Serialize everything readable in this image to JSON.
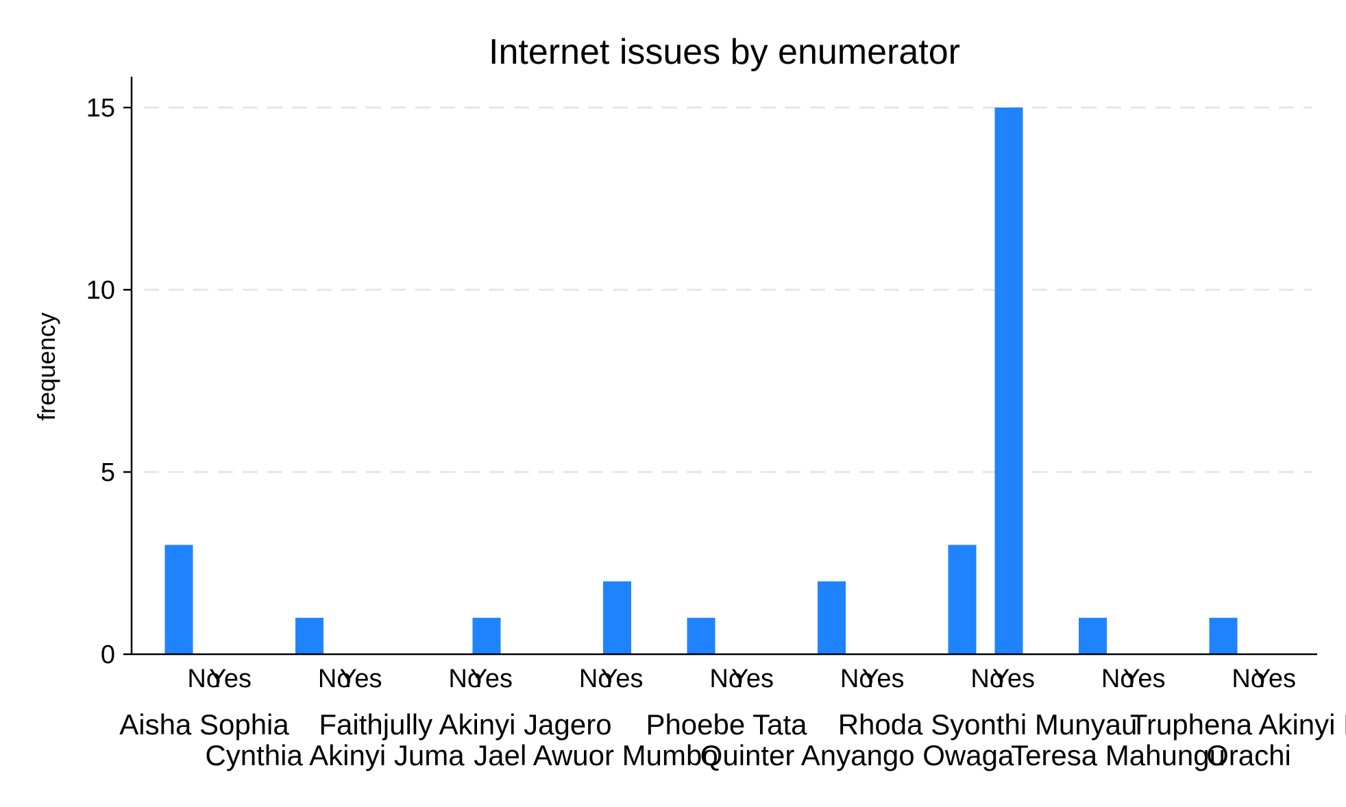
{
  "chart_data": {
    "type": "bar",
    "title": "Internet issues by enumerator",
    "ylabel": "frequency",
    "xlabel": "",
    "ylim": [
      0,
      15.8
    ],
    "yticks": [
      0,
      5,
      10,
      15
    ],
    "grid": true,
    "bar_color": "#1f83fe",
    "sub_categories": [
      "No",
      "Yes"
    ],
    "enumerators": [
      "Aisha Sophia",
      "Cynthia Akinyi Juma",
      "Faithjully Akinyi Jagero",
      "Jael Awuor Mumbo",
      "Phoebe Tata",
      "Quinter Anyango Owaga",
      "Rhoda Syonthi Munyau",
      "Teresa Mahungu",
      "Truphena Akinyi Orachi"
    ],
    "top_labels": [
      "Aisha Sophia",
      "Faithjully Akinyi Jagero",
      "Phoebe Tata",
      "Rhoda Syonthi Munyau",
      "Truphena Akinyi M"
    ],
    "bottom_labels": [
      "Cynthia Akinyi Juma",
      "Jael Awuor Mumbo",
      "Quinter Anyango Owaga",
      "Teresa Mahungu",
      "Orachi"
    ],
    "values": [
      [
        3,
        0
      ],
      [
        1,
        0
      ],
      [
        0,
        1
      ],
      [
        0,
        2
      ],
      [
        1,
        0
      ],
      [
        2,
        0
      ],
      [
        3,
        15
      ],
      [
        1,
        0
      ],
      [
        1,
        0
      ]
    ]
  }
}
